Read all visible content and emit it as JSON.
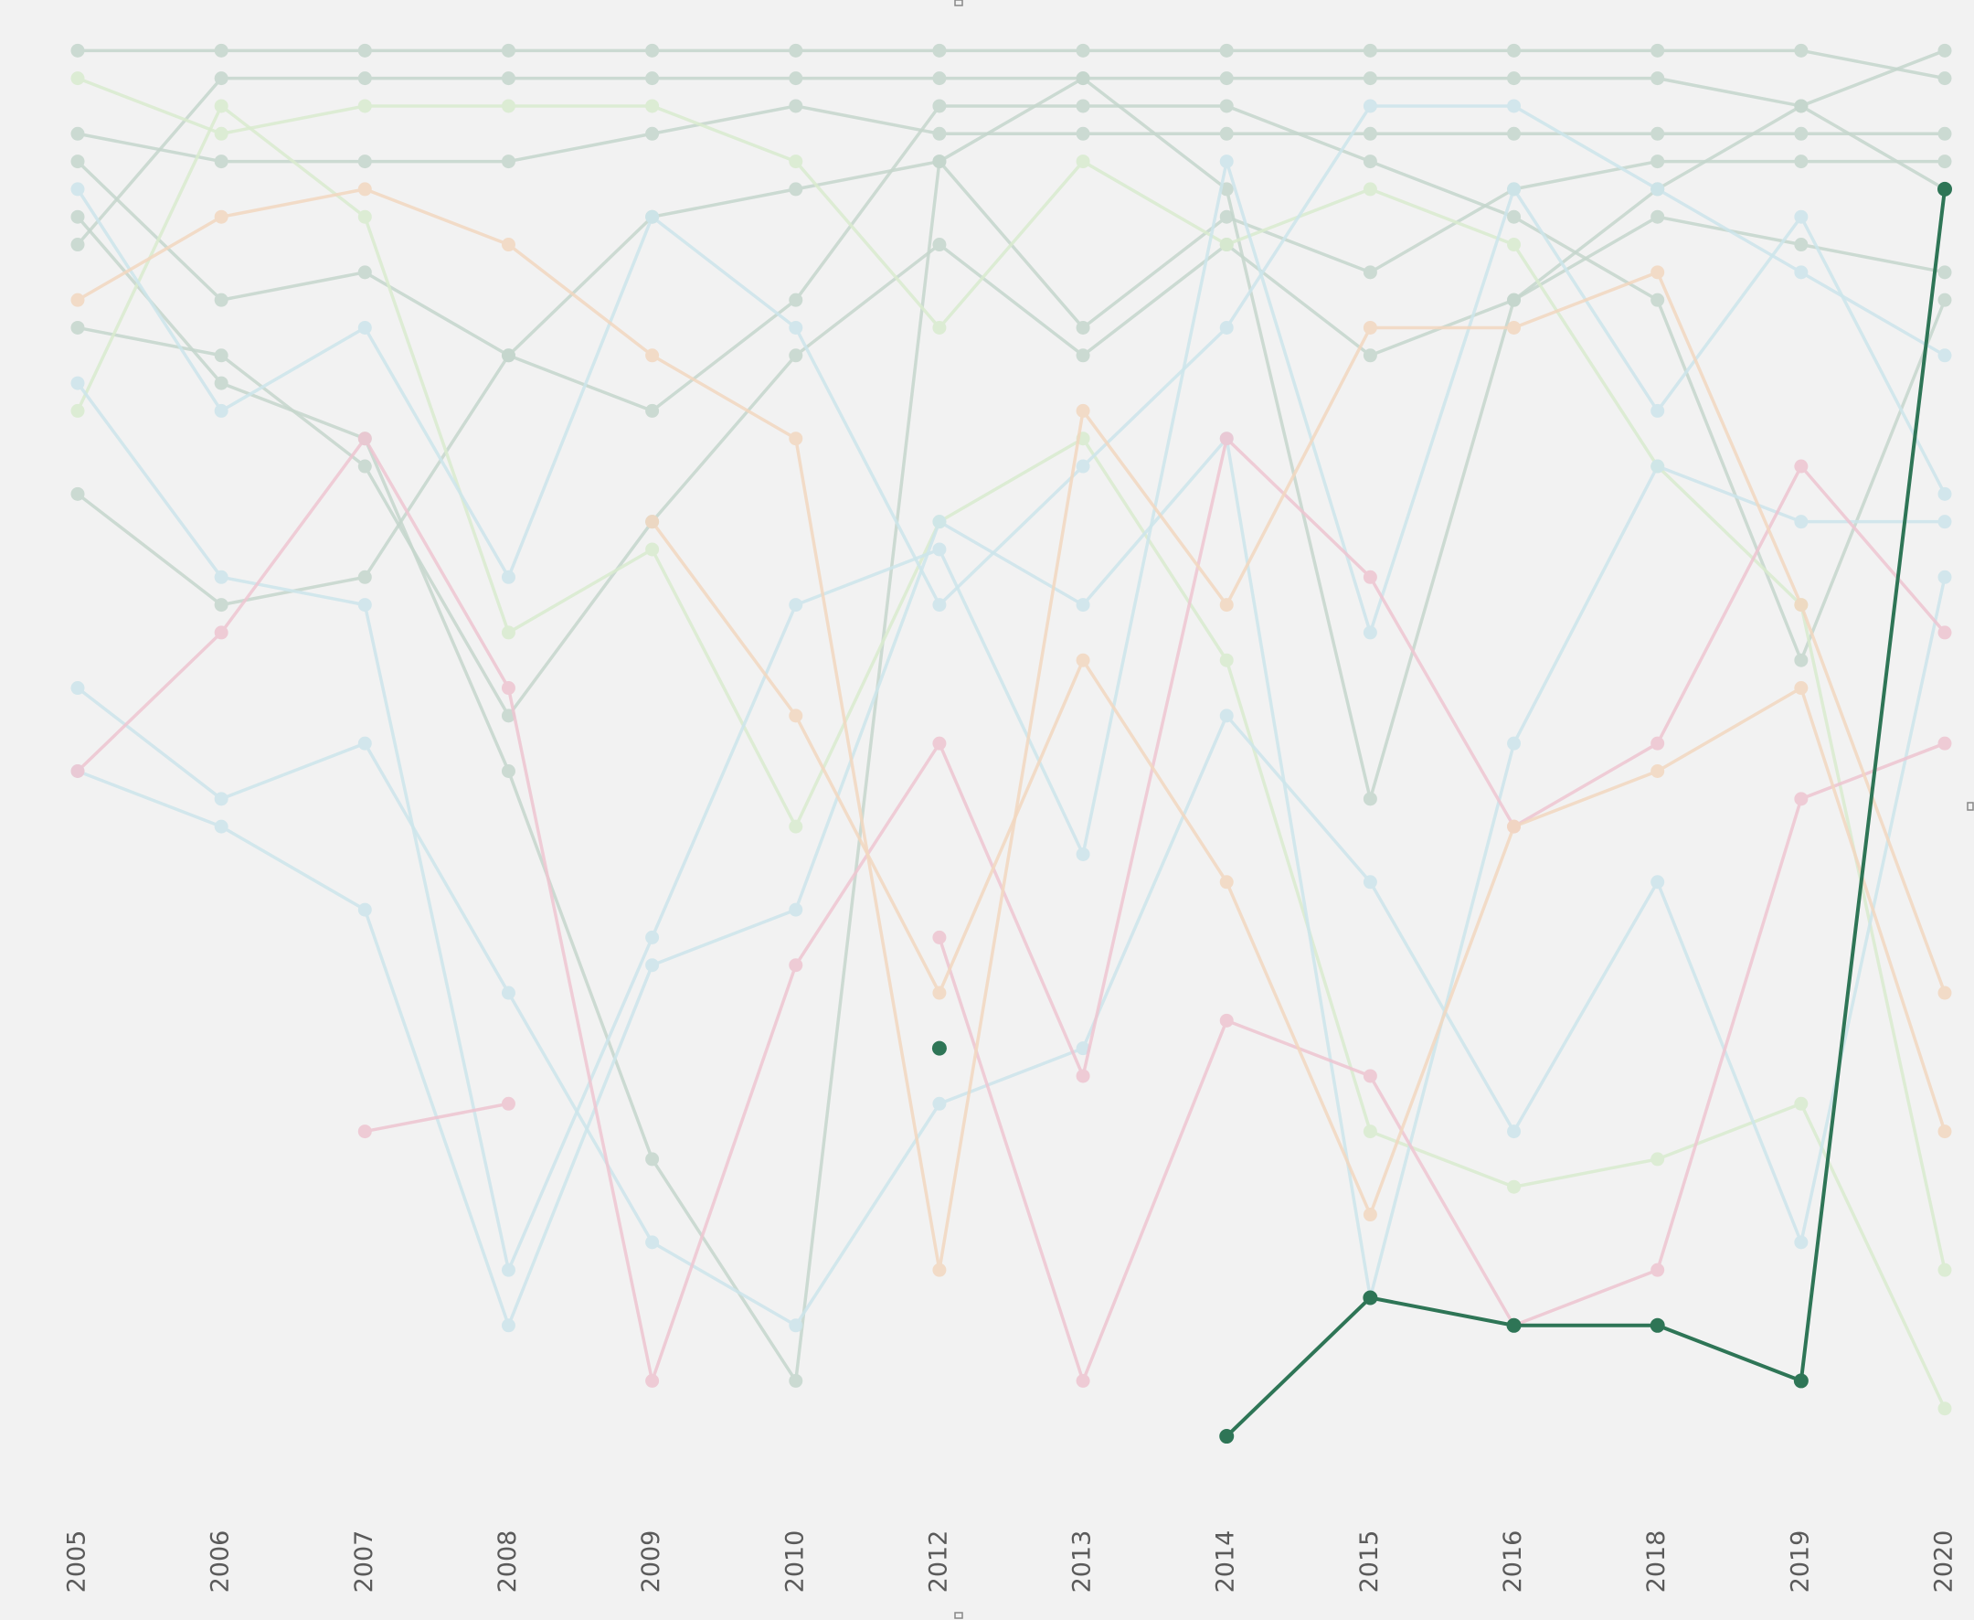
{
  "chart_data": {
    "type": "bump",
    "categories": [
      "2005",
      "2006",
      "2007",
      "2008",
      "2009",
      "2010",
      "2012",
      "2013",
      "2014",
      "2015",
      "2016",
      "2018",
      "2019",
      "2020"
    ],
    "ylim": [
      54,
      0
    ],
    "series": [
      {
        "color": "#c5d6cd",
        "values": [
          1,
          1,
          1,
          1,
          1,
          1,
          1,
          1,
          1,
          1,
          1,
          1,
          1,
          2
        ]
      },
      {
        "color": "#c5d6cd",
        "values": [
          8,
          2,
          2,
          2,
          2,
          2,
          2,
          2,
          2,
          2,
          2,
          2,
          3,
          1
        ]
      },
      {
        "color": "#c5d6cd",
        "values": [
          4,
          5,
          5,
          5,
          4,
          3,
          4,
          4,
          4,
          4,
          4,
          4,
          4,
          4
        ]
      },
      {
        "color": "#c5d6cd",
        "values": [
          5,
          10,
          9,
          12,
          7,
          6,
          5,
          11,
          7,
          9,
          6,
          5,
          5,
          5
        ]
      },
      {
        "color": "#c5d6cd",
        "values": [
          11,
          12,
          16,
          25,
          18,
          12,
          8,
          12,
          8,
          12,
          10,
          7,
          8,
          9
        ]
      },
      {
        "color": "#c5d6cd",
        "values": [
          17,
          21,
          20,
          12,
          14,
          10,
          3,
          3,
          3,
          5,
          7,
          10,
          23,
          10
        ]
      },
      {
        "color": "#c5d6cd",
        "values": [
          7,
          13,
          15,
          27,
          41,
          49,
          5,
          2,
          6,
          28,
          10,
          6,
          3,
          6
        ]
      },
      {
        "color": "#d9ebcf",
        "values": [
          2,
          4,
          3,
          3,
          3,
          5,
          11,
          5,
          8,
          6,
          8,
          16,
          21,
          45
        ]
      },
      {
        "color": "#d9ebcf",
        "values": [
          14,
          3,
          7,
          22,
          19,
          29,
          18,
          15,
          23,
          40,
          42,
          41,
          39,
          50
        ]
      },
      {
        "color": "#cde5eb",
        "values": [
          6,
          14,
          11,
          20,
          7,
          11,
          21,
          16,
          11,
          3,
          3,
          6,
          9,
          12
        ]
      },
      {
        "color": "#cde5eb",
        "values": [
          13,
          20,
          21,
          45,
          33,
          21,
          19,
          30,
          5,
          22,
          6,
          14,
          7,
          17
        ]
      },
      {
        "color": "#cde5eb",
        "values": [
          24,
          28,
          26,
          35,
          44,
          47,
          39,
          37,
          25,
          31,
          40,
          31,
          44,
          20
        ]
      },
      {
        "color": "#cde5eb",
        "values": [
          27,
          29,
          32,
          47,
          34,
          32,
          18,
          21,
          15,
          46,
          26,
          16,
          18,
          18
        ]
      },
      {
        "color": "#eec5d1",
        "values": [
          27,
          22,
          15,
          24,
          49,
          34,
          26,
          38,
          15,
          20,
          29,
          26,
          16,
          22
        ]
      },
      {
        "color": "#eec5d1",
        "values": [
          null,
          null,
          40,
          39,
          null,
          null,
          33,
          49,
          36,
          38,
          47,
          45,
          28,
          26
        ]
      },
      {
        "color": "#f2d7c0",
        "values": [
          10,
          7,
          6,
          8,
          12,
          15,
          45,
          14,
          21,
          11,
          11,
          9,
          21,
          35
        ]
      },
      {
        "color": "#f2d7c0",
        "values": [
          null,
          null,
          null,
          null,
          18,
          25,
          35,
          23,
          31,
          43,
          29,
          27,
          24,
          40
        ]
      },
      {
        "color": "#2e7556",
        "values": [
          null,
          null,
          null,
          null,
          null,
          null,
          37,
          null,
          51,
          46,
          47,
          47,
          49,
          6
        ]
      }
    ]
  }
}
